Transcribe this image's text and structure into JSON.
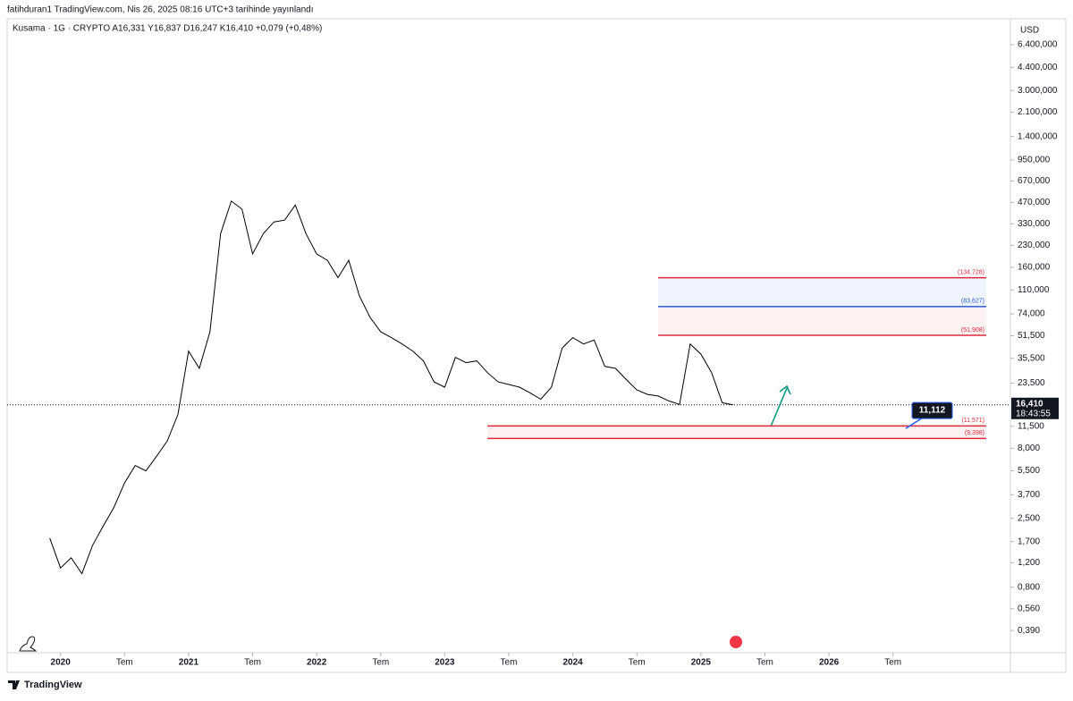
{
  "chart_data": {
    "type": "line",
    "header": "fatihduran1 TradingView.com, Nis 26, 2025 08:16 UTC+3 tarihinde yayınlandı",
    "legend": "Kusama · 1G · CRYPTO  A16,331  Y16,837  D16,247  K16,410  +0,079 (+0,48%)",
    "currency": "USD",
    "footer": "TradingView",
    "log_scale": true,
    "color": "#000000",
    "x": [
      "2019-12",
      "2020-01",
      "2020-02",
      "2020-03",
      "2020-04",
      "2020-05",
      "2020-06",
      "2020-07",
      "2020-08",
      "2020-09",
      "2020-10",
      "2020-11",
      "2020-12",
      "2021-01",
      "2021-02",
      "2021-03",
      "2021-04",
      "2021-05",
      "2021-06",
      "2021-07",
      "2021-08",
      "2021-09",
      "2021-10",
      "2021-11",
      "2021-12",
      "2022-01",
      "2022-02",
      "2022-03",
      "2022-04",
      "2022-05",
      "2022-06",
      "2022-07",
      "2022-08",
      "2022-09",
      "2022-10",
      "2022-11",
      "2022-12",
      "2023-01",
      "2023-02",
      "2023-03",
      "2023-04",
      "2023-05",
      "2023-06",
      "2023-07",
      "2023-08",
      "2023-09",
      "2023-10",
      "2023-11",
      "2023-12",
      "2024-01",
      "2024-02",
      "2024-03",
      "2024-04",
      "2024-05",
      "2024-06",
      "2024-07",
      "2024-08",
      "2024-09",
      "2024-10",
      "2024-11",
      "2024-12",
      "2025-01",
      "2025-02",
      "2025-03",
      "2025-04"
    ],
    "values": [
      1.8,
      1.1,
      1.3,
      1.0,
      1.6,
      2.2,
      3.0,
      4.5,
      6.0,
      5.5,
      7,
      9,
      14,
      40,
      30,
      55,
      280,
      480,
      420,
      200,
      280,
      340,
      350,
      450,
      280,
      200,
      180,
      135,
      180,
      100,
      70,
      55,
      50,
      45,
      40,
      34,
      24,
      22,
      36,
      33,
      34,
      28,
      24,
      23,
      22,
      20,
      18,
      22,
      42,
      50,
      45,
      48,
      31,
      30,
      25,
      21,
      19.5,
      19,
      17.5,
      16.5,
      45,
      38,
      28,
      17,
      16.41
    ],
    "xlim": [
      "2019-08",
      "2027-06"
    ],
    "xticks": [
      {
        "value": "2020-01",
        "label": "2020"
      },
      {
        "value": "2020-07",
        "label": "Tem"
      },
      {
        "value": "2021-01",
        "label": "2021"
      },
      {
        "value": "2021-07",
        "label": "Tem"
      },
      {
        "value": "2022-01",
        "label": "2022"
      },
      {
        "value": "2022-07",
        "label": "Tem"
      },
      {
        "value": "2023-01",
        "label": "2023"
      },
      {
        "value": "2023-07",
        "label": "Tem"
      },
      {
        "value": "2024-01",
        "label": "2024"
      },
      {
        "value": "2024-07",
        "label": "Tem"
      },
      {
        "value": "2025-01",
        "label": "2025"
      },
      {
        "value": "2025-07",
        "label": "Tem"
      },
      {
        "value": "2026-01",
        "label": "2026"
      },
      {
        "value": "2026-07",
        "label": "Tem"
      }
    ],
    "ylim": [
      0.27,
      9700
    ],
    "yticks": [
      {
        "value": 6400,
        "label": "6.400,000"
      },
      {
        "value": 4400,
        "label": "4.400,000"
      },
      {
        "value": 3000,
        "label": "3.000,000"
      },
      {
        "value": 2100,
        "label": "2.100,000"
      },
      {
        "value": 1400,
        "label": "1.400,000"
      },
      {
        "value": 950,
        "label": "950,000"
      },
      {
        "value": 670,
        "label": "670,000"
      },
      {
        "value": 470,
        "label": "470,000"
      },
      {
        "value": 330,
        "label": "330,000"
      },
      {
        "value": 230,
        "label": "230,000"
      },
      {
        "value": 160,
        "label": "160,000"
      },
      {
        "value": 110,
        "label": "110,000"
      },
      {
        "value": 74,
        "label": "74,000"
      },
      {
        "value": 51.5,
        "label": "51,500"
      },
      {
        "value": 35.5,
        "label": "35,500"
      },
      {
        "value": 23.5,
        "label": "23,500"
      },
      {
        "value": 11.5,
        "label": "11,500"
      },
      {
        "value": 8,
        "label": "8,000"
      },
      {
        "value": 5.5,
        "label": "5,500"
      },
      {
        "value": 3.7,
        "label": "3,700"
      },
      {
        "value": 2.5,
        "label": "2,500"
      },
      {
        "value": 1.7,
        "label": "1,700"
      },
      {
        "value": 1.2,
        "label": "1,200"
      },
      {
        "value": 0.8,
        "label": "0,800"
      },
      {
        "value": 0.56,
        "label": "0,560"
      },
      {
        "value": 0.39,
        "label": "0,390"
      }
    ],
    "last_price": {
      "value": 16.41,
      "label": "16,410",
      "timer": "18:43:55"
    },
    "levels": [
      {
        "value": 134.728,
        "label": "(134,728)",
        "color": "#e0283c",
        "from": "2024-09"
      },
      {
        "value": 83.627,
        "label": "(83,627)",
        "color": "#2a5bd7",
        "from": "2024-09"
      },
      {
        "value": 51.908,
        "label": "(51,908)",
        "color": "#e0283c",
        "from": "2024-09"
      },
      {
        "value": 11.571,
        "label": "(11,571)",
        "color": "#e0283c",
        "from": "2023-05"
      },
      {
        "value": 9.398,
        "label": "(9,398)",
        "color": "#e0283c",
        "from": "2023-05"
      }
    ],
    "callout": {
      "value": 11.112,
      "label": "11,112"
    }
  }
}
